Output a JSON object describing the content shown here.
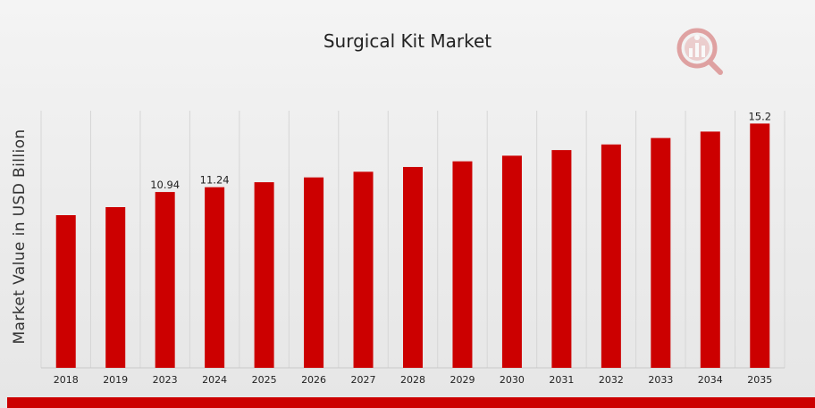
{
  "chart_data": {
    "type": "bar",
    "title": "Surgical Kit Market",
    "xlabel": "",
    "ylabel": "Market Value in USD Billion",
    "categories": [
      "2018",
      "2019",
      "2023",
      "2024",
      "2025",
      "2026",
      "2027",
      "2028",
      "2029",
      "2030",
      "2031",
      "2032",
      "2033",
      "2034",
      "2035"
    ],
    "values": [
      9.5,
      10.0,
      10.94,
      11.24,
      11.55,
      11.85,
      12.2,
      12.5,
      12.85,
      13.2,
      13.55,
      13.9,
      14.3,
      14.7,
      15.2
    ],
    "data_labels": {
      "2023": "10.94",
      "2024": "11.24",
      "2035": "15.2"
    },
    "ylim": [
      0,
      16
    ],
    "grid": "vertical",
    "legend": "none",
    "bar_color": "#cc0000"
  },
  "colors": {
    "accent": "#cc0000",
    "gridline": "#d6d6d6"
  },
  "logo": {
    "icon": "mrfr-chart-magnifier-logo"
  }
}
